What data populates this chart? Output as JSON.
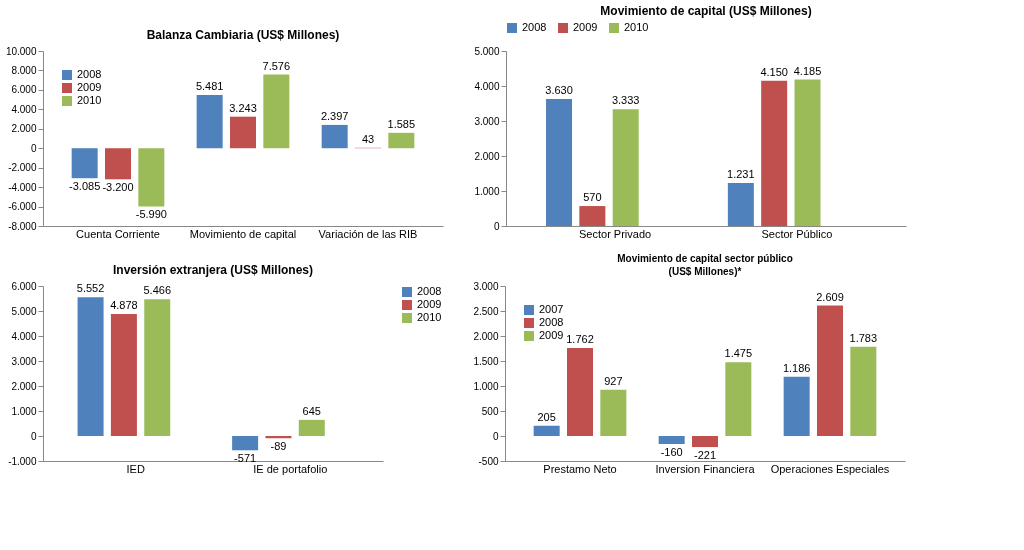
{
  "chart_data": [
    {
      "type": "bar",
      "title": "Balanza Cambiaria  (US$ Millones)",
      "categories": [
        "Cuenta Corriente",
        "Movimiento de capital",
        "Variación de las RIB"
      ],
      "series": [
        {
          "name": "2008",
          "color": "#4f81bd",
          "values": [
            -3085,
            5481,
            2397
          ],
          "value_labels": [
            "-3.085",
            "5.481",
            "2.397"
          ]
        },
        {
          "name": "2009",
          "color": "#c0504d",
          "values": [
            -3200,
            3243,
            43
          ],
          "value_labels": [
            "-3.200",
            "3.243",
            "43"
          ]
        },
        {
          "name": "2010",
          "color": "#9bbb59",
          "values": [
            -5990,
            7576,
            1585
          ],
          "value_labels": [
            "-5.990",
            "7.576",
            "1.585"
          ]
        }
      ],
      "ylim": [
        -8000,
        10000
      ],
      "yticks": [
        {
          "value": -8000,
          "label": "-8.000"
        },
        {
          "value": -6000,
          "label": "-6.000"
        },
        {
          "value": -4000,
          "label": "-4.000"
        },
        {
          "value": -2000,
          "label": "-2.000"
        },
        0,
        {
          "value": 2000,
          "label": "2.000"
        },
        {
          "value": 4000,
          "label": "4.000"
        },
        {
          "value": 6000,
          "label": "6.000"
        },
        {
          "value": 8000,
          "label": "8.000"
        },
        {
          "value": 10000,
          "label": "10.000"
        }
      ],
      "legend": "top left",
      "grid": false
    },
    {
      "type": "bar",
      "title": "Movimiento de capital (US$ Millones)",
      "categories": [
        "Sector Privado",
        "Sector Público"
      ],
      "series": [
        {
          "name": "2008",
          "color": "#4f81bd",
          "values": [
            3630,
            1231
          ],
          "value_labels": [
            "3.630",
            "1.231"
          ]
        },
        {
          "name": "2009",
          "color": "#c0504d",
          "values": [
            570,
            4150
          ],
          "value_labels": [
            "570",
            "4.150"
          ]
        },
        {
          "name": "2010",
          "color": "#9bbb59",
          "values": [
            3333,
            4185
          ],
          "value_labels": [
            "3.333",
            "4.185"
          ]
        }
      ],
      "ylim": [
        0,
        5000
      ],
      "yticks": [
        0,
        {
          "value": 1000,
          "label": "1.000"
        },
        {
          "value": 2000,
          "label": "2.000"
        },
        {
          "value": 3000,
          "label": "3.000"
        },
        {
          "value": 4000,
          "label": "4.000"
        },
        {
          "value": 5000,
          "label": "5.000"
        }
      ],
      "legend": "top",
      "grid": false
    },
    {
      "type": "bar",
      "title": "Inversión extranjera (US$ Millones)",
      "categories": [
        "IED",
        "IE de portafolio"
      ],
      "series": [
        {
          "name": "2008",
          "color": "#4f81bd",
          "values": [
            5552,
            -571
          ],
          "value_labels": [
            "5.552",
            "-571"
          ]
        },
        {
          "name": "2009",
          "color": "#c0504d",
          "values": [
            4878,
            -89
          ],
          "value_labels": [
            "4.878",
            "-89"
          ]
        },
        {
          "name": "2010",
          "color": "#9bbb59",
          "values": [
            5466,
            645
          ],
          "value_labels": [
            "5.466",
            "645"
          ]
        }
      ],
      "ylim": [
        -1000,
        6000
      ],
      "yticks": [
        {
          "value": -1000,
          "label": "-1.000"
        },
        0,
        {
          "value": 1000,
          "label": "1.000"
        },
        {
          "value": 2000,
          "label": "2.000"
        },
        {
          "value": 3000,
          "label": "3.000"
        },
        {
          "value": 4000,
          "label": "4.000"
        },
        {
          "value": 5000,
          "label": "5.000"
        },
        {
          "value": 6000,
          "label": "6.000"
        }
      ],
      "legend": "right",
      "grid": false
    },
    {
      "type": "bar",
      "title": "Movimiento de capital sector público",
      "subtitle": "(US$ Millones)*",
      "categories": [
        "Prestamo Neto",
        "Inversion Financiera",
        "Operaciones Especiales"
      ],
      "series": [
        {
          "name": "2007",
          "color": "#4f81bd",
          "values": [
            205,
            -160,
            1186
          ],
          "value_labels": [
            "205",
            "-160",
            "1.186"
          ]
        },
        {
          "name": "2008",
          "color": "#c0504d",
          "values": [
            1762,
            -221,
            2609
          ],
          "value_labels": [
            "1.762",
            "-221",
            "2.609"
          ]
        },
        {
          "name": "2009",
          "color": "#9bbb59",
          "values": [
            927,
            1475,
            1783
          ],
          "value_labels": [
            "927",
            "1.475",
            "1.783"
          ]
        }
      ],
      "ylim": [
        -500,
        3000
      ],
      "yticks": [
        -500,
        0,
        500,
        {
          "value": 1000,
          "label": "1.000"
        },
        {
          "value": 1500,
          "label": "1.500"
        },
        {
          "value": 2000,
          "label": "2.000"
        },
        {
          "value": 2500,
          "label": "2.500"
        },
        {
          "value": 3000,
          "label": "3.000"
        }
      ],
      "legend": "top left",
      "grid": false
    }
  ]
}
